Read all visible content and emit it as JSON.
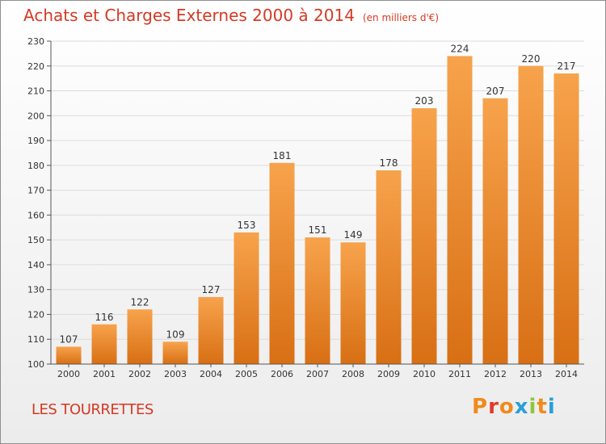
{
  "header": {
    "title": "Achats et Charges Externes 2000 à 2014",
    "unit": "(en milliers d'€)"
  },
  "footer": {
    "commune": "LES TOURRETTES",
    "logo_text": "Proxiti"
  },
  "colors": {
    "title": "#d43a25",
    "bar_light": "#f7a34c",
    "bar_dark": "#d86f14",
    "grid": "#dcdcdc",
    "text": "#333333"
  },
  "chart_data": {
    "type": "bar",
    "categories": [
      "2000",
      "2001",
      "2002",
      "2003",
      "2004",
      "2005",
      "2006",
      "2007",
      "2008",
      "2009",
      "2010",
      "2011",
      "2012",
      "2013",
      "2014"
    ],
    "values": [
      107,
      116,
      122,
      109,
      127,
      153,
      181,
      151,
      149,
      178,
      203,
      224,
      207,
      220,
      217
    ],
    "ylim": [
      100,
      230
    ],
    "yticks": [
      100,
      110,
      120,
      130,
      140,
      150,
      160,
      170,
      180,
      190,
      200,
      210,
      220,
      230
    ],
    "grid": true,
    "data_labels": true
  }
}
